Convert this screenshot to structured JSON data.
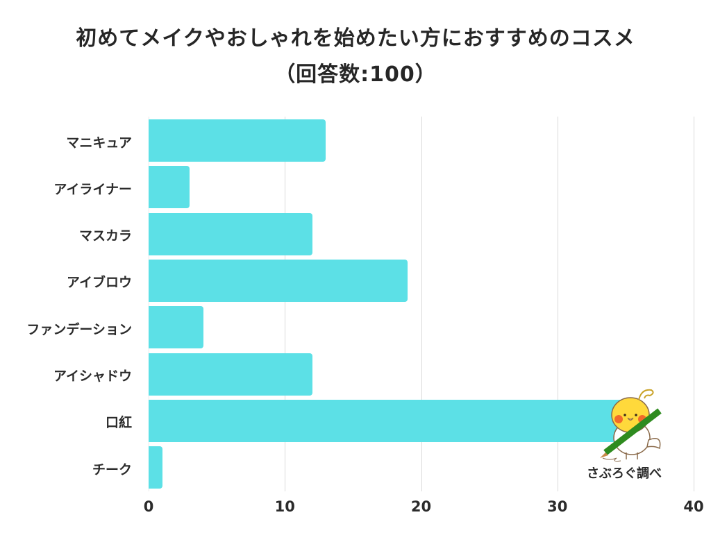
{
  "title": {
    "line1": "初めてメイクやおしゃれを始めたい方におすすめのコスメ",
    "line2": "（回答数:100）"
  },
  "credit": "さぶろぐ調べ",
  "colors": {
    "bar": "#5ce0e6",
    "grid": "#d9d9d9",
    "text": "#2b2b2b"
  },
  "x_ticks": [
    "0",
    "10",
    "20",
    "30",
    "40"
  ],
  "chart_data": {
    "type": "bar",
    "orientation": "horizontal",
    "title": "初めてメイクやおしゃれを始めたい方におすすめのコスメ（回答数:100）",
    "categories": [
      "マニキュア",
      "アイライナー",
      "マスカラ",
      "アイブロウ",
      "ファンデーション",
      "アイシャドウ",
      "口紅",
      "チーク"
    ],
    "values": [
      13,
      3,
      12,
      19,
      4,
      12,
      36,
      1
    ],
    "xlabel": "",
    "ylabel": "",
    "xlim": [
      0,
      40
    ],
    "x_ticks": [
      0,
      10,
      20,
      30,
      40
    ],
    "grid": "vertical",
    "legend": "none",
    "annotation": "さぶろぐ調べ"
  }
}
